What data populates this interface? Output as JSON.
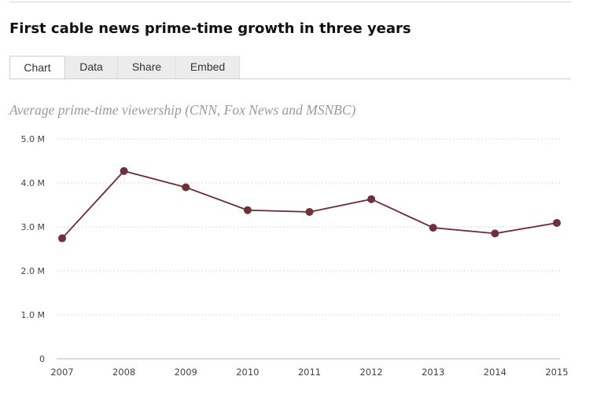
{
  "header": {
    "title": "First cable news prime-time growth in three years"
  },
  "tabs": [
    {
      "label": "Chart",
      "active": true
    },
    {
      "label": "Data",
      "active": false
    },
    {
      "label": "Share",
      "active": false
    },
    {
      "label": "Embed",
      "active": false
    }
  ],
  "chart_data": {
    "type": "line",
    "title": "First cable news prime-time growth in three years",
    "subtitle": "Average prime-time viewership (CNN, Fox News and MSNBC)",
    "xlabel": "",
    "ylabel": "",
    "x": [
      2007,
      2008,
      2009,
      2010,
      2011,
      2012,
      2013,
      2014,
      2015
    ],
    "x_tick_labels": [
      "2007",
      "2008",
      "2009",
      "2010",
      "2011",
      "2012",
      "2013",
      "2014",
      "2015"
    ],
    "series": [
      {
        "values": [
          2.74,
          4.27,
          3.9,
          3.38,
          3.34,
          3.63,
          2.98,
          2.85,
          3.09
        ]
      }
    ],
    "ylim": [
      0,
      5
    ],
    "y_ticks": [
      0,
      1,
      2,
      3,
      4,
      5
    ],
    "y_tick_labels": [
      "0",
      "1.0 M",
      "2.0 M",
      "3.0 M",
      "4.0 M",
      "5.0 M"
    ],
    "grid": "horizontal dotted",
    "legend": "none",
    "colors": {
      "line": "#6b2a34",
      "marker": "#6e3039",
      "grid": "#c9c9c9",
      "baseline": "#b8cbd8",
      "subtitle": "#9a9a9a"
    }
  }
}
